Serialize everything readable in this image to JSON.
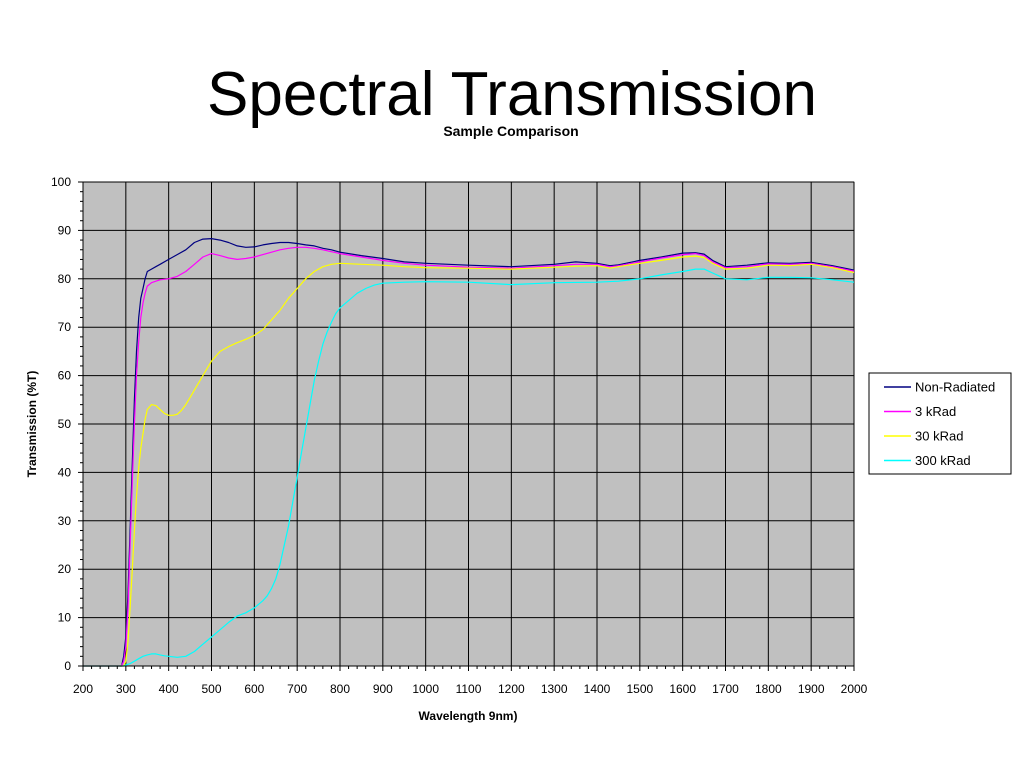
{
  "slide": {
    "title": "Spectral Transmission"
  },
  "chart_data": {
    "type": "line",
    "title": "Sample Comparison",
    "xlabel": "Wavelength 9nm)",
    "ylabel": "Transmission (%T)",
    "xlim": [
      200,
      2000
    ],
    "ylim": [
      0,
      100
    ],
    "xticks": [
      200,
      300,
      400,
      500,
      600,
      700,
      800,
      900,
      1000,
      1100,
      1200,
      1300,
      1400,
      1500,
      1600,
      1700,
      1800,
      1900,
      2000
    ],
    "yticks": [
      0,
      10,
      20,
      30,
      40,
      50,
      60,
      70,
      80,
      90,
      100
    ],
    "grid": true,
    "plot_background": "#c0c0c0",
    "legend_position": "right",
    "series": [
      {
        "name": "Non-Radiated",
        "color": "#000080",
        "x": [
          200,
          290,
          295,
          300,
          305,
          310,
          315,
          320,
          325,
          330,
          335,
          340,
          345,
          350,
          360,
          370,
          380,
          400,
          420,
          440,
          460,
          480,
          500,
          520,
          540,
          560,
          580,
          600,
          620,
          640,
          660,
          680,
          700,
          720,
          740,
          760,
          780,
          800,
          850,
          900,
          950,
          1000,
          1100,
          1200,
          1300,
          1350,
          1400,
          1430,
          1450,
          1500,
          1550,
          1600,
          1630,
          1650,
          1670,
          1700,
          1750,
          1800,
          1850,
          1900,
          1950,
          2000
        ],
        "y": [
          0,
          0,
          2,
          6,
          15,
          28,
          42,
          55,
          65,
          72,
          76,
          78,
          80,
          81.5,
          82,
          82.5,
          83,
          84,
          85,
          86,
          87.5,
          88.2,
          88.3,
          88,
          87.5,
          86.8,
          86.5,
          86.6,
          87,
          87.3,
          87.5,
          87.5,
          87.3,
          87,
          86.8,
          86.3,
          86,
          85.5,
          84.8,
          84.2,
          83.5,
          83.2,
          82.8,
          82.5,
          83,
          83.5,
          83.2,
          82.7,
          82.9,
          83.8,
          84.5,
          85.3,
          85.4,
          85.1,
          83.8,
          82.5,
          82.8,
          83.3,
          83.2,
          83.4,
          82.7,
          81.8
        ]
      },
      {
        "name": "3 kRad",
        "color": "#ff00ff",
        "x": [
          200,
          290,
          295,
          300,
          305,
          310,
          315,
          320,
          325,
          330,
          335,
          340,
          345,
          350,
          360,
          370,
          380,
          400,
          420,
          440,
          460,
          480,
          500,
          520,
          540,
          560,
          580,
          600,
          620,
          640,
          660,
          680,
          700,
          720,
          740,
          760,
          780,
          800,
          850,
          900,
          950,
          1000,
          1100,
          1200,
          1300,
          1350,
          1400,
          1430,
          1450,
          1500,
          1550,
          1600,
          1630,
          1650,
          1670,
          1700,
          1750,
          1800,
          1850,
          1900,
          1950,
          2000
        ],
        "y": [
          0,
          0,
          1,
          4,
          12,
          25,
          38,
          50,
          60,
          67,
          72,
          75,
          77,
          78.5,
          79.2,
          79.5,
          79.8,
          80,
          80.5,
          81.5,
          83,
          84.5,
          85.2,
          84.8,
          84.3,
          84,
          84.2,
          84.5,
          85,
          85.5,
          86,
          86.3,
          86.5,
          86.5,
          86.3,
          86,
          85.6,
          85.2,
          84.5,
          83.8,
          83.2,
          82.8,
          82.4,
          82.2,
          82.7,
          83,
          83,
          82.5,
          82.7,
          83.5,
          84.3,
          85,
          85.2,
          84.8,
          83.5,
          82.3,
          82.5,
          83.1,
          83,
          83.2,
          82.5,
          81.6
        ]
      },
      {
        "name": "30 kRad",
        "color": "#ffff00",
        "x": [
          200,
          290,
          295,
          300,
          305,
          310,
          315,
          320,
          325,
          330,
          335,
          340,
          345,
          350,
          360,
          370,
          380,
          390,
          400,
          410,
          420,
          430,
          440,
          450,
          460,
          480,
          500,
          520,
          540,
          560,
          580,
          600,
          620,
          640,
          660,
          680,
          700,
          720,
          740,
          760,
          780,
          800,
          850,
          900,
          950,
          1000,
          1100,
          1200,
          1300,
          1350,
          1400,
          1430,
          1450,
          1500,
          1550,
          1600,
          1630,
          1650,
          1670,
          1700,
          1750,
          1800,
          1850,
          1900,
          1950,
          2000
        ],
        "y": [
          0,
          0,
          0,
          1,
          5,
          12,
          20,
          28,
          35,
          41,
          45,
          48,
          51,
          53,
          54,
          53.8,
          53,
          52.2,
          51.8,
          51.8,
          52,
          52.8,
          54,
          55.5,
          57,
          60,
          63,
          65,
          66,
          66.8,
          67.5,
          68.3,
          69.5,
          71.5,
          73.5,
          76,
          78,
          80,
          81.5,
          82.5,
          83,
          83.2,
          83,
          82.8,
          82.5,
          82.3,
          82.2,
          82,
          82.4,
          82.6,
          82.7,
          82.2,
          82.5,
          83.2,
          83.8,
          84.5,
          84.7,
          84.4,
          83.2,
          82,
          82.2,
          82.8,
          82.7,
          83,
          82.3,
          81.3
        ]
      },
      {
        "name": "300 kRad",
        "color": "#00ffff",
        "x": [
          200,
          290,
          295,
          300,
          310,
          320,
          330,
          340,
          350,
          360,
          370,
          380,
          390,
          400,
          420,
          440,
          460,
          480,
          500,
          520,
          540,
          560,
          580,
          600,
          620,
          630,
          640,
          650,
          660,
          670,
          680,
          690,
          700,
          710,
          720,
          730,
          740,
          750,
          760,
          770,
          780,
          790,
          800,
          820,
          840,
          860,
          880,
          900,
          950,
          1000,
          1100,
          1200,
          1300,
          1400,
          1450,
          1500,
          1550,
          1600,
          1630,
          1650,
          1670,
          1700,
          1750,
          1800,
          1850,
          1900,
          1950,
          2000
        ],
        "y": [
          0,
          0,
          0,
          0.2,
          0.5,
          1,
          1.5,
          2,
          2.3,
          2.5,
          2.5,
          2.3,
          2.1,
          2,
          1.8,
          2,
          3,
          4.5,
          6,
          7.5,
          9,
          10.3,
          11,
          12,
          13.5,
          14.5,
          16,
          18,
          21,
          25,
          29,
          34,
          39,
          44,
          49,
          54,
          59,
          63,
          66.5,
          69,
          71,
          72.8,
          74,
          75.5,
          77,
          78,
          78.7,
          79.1,
          79.3,
          79.4,
          79.3,
          78.8,
          79.2,
          79.3,
          79.5,
          80,
          80.8,
          81.5,
          82,
          82,
          81.2,
          80,
          79.8,
          80.3,
          80.3,
          80.2,
          79.8,
          79.3
        ]
      }
    ]
  }
}
